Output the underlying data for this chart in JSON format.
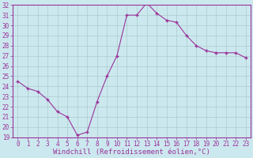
{
  "x": [
    0,
    1,
    2,
    3,
    4,
    5,
    6,
    7,
    8,
    9,
    10,
    11,
    12,
    13,
    14,
    15,
    16,
    17,
    18,
    19,
    20,
    21,
    22,
    23
  ],
  "y": [
    24.5,
    23.8,
    23.5,
    22.7,
    21.5,
    21.0,
    19.2,
    19.5,
    22.5,
    25.0,
    27.0,
    31.0,
    31.0,
    32.2,
    31.2,
    30.5,
    30.3,
    29.0,
    28.0,
    27.5,
    27.3,
    27.3,
    27.3,
    26.8
  ],
  "line_color": "#993399",
  "marker": "+",
  "marker_size": 3,
  "bg_color": "#cce8ef",
  "grid_color": "#aacccc",
  "xlabel": "Windchill (Refroidissement éolien,°C)",
  "xlabel_fontsize": 6.5,
  "tick_fontsize": 5.5,
  "ylim": [
    19,
    32
  ],
  "yticks": [
    19,
    20,
    21,
    22,
    23,
    24,
    25,
    26,
    27,
    28,
    29,
    30,
    31,
    32
  ],
  "xticks": [
    0,
    1,
    2,
    3,
    4,
    5,
    6,
    7,
    8,
    9,
    10,
    11,
    12,
    13,
    14,
    15,
    16,
    17,
    18,
    19,
    20,
    21,
    22,
    23
  ],
  "xlabel_color": "#993399",
  "tick_color": "#993399",
  "spine_color": "#993399"
}
